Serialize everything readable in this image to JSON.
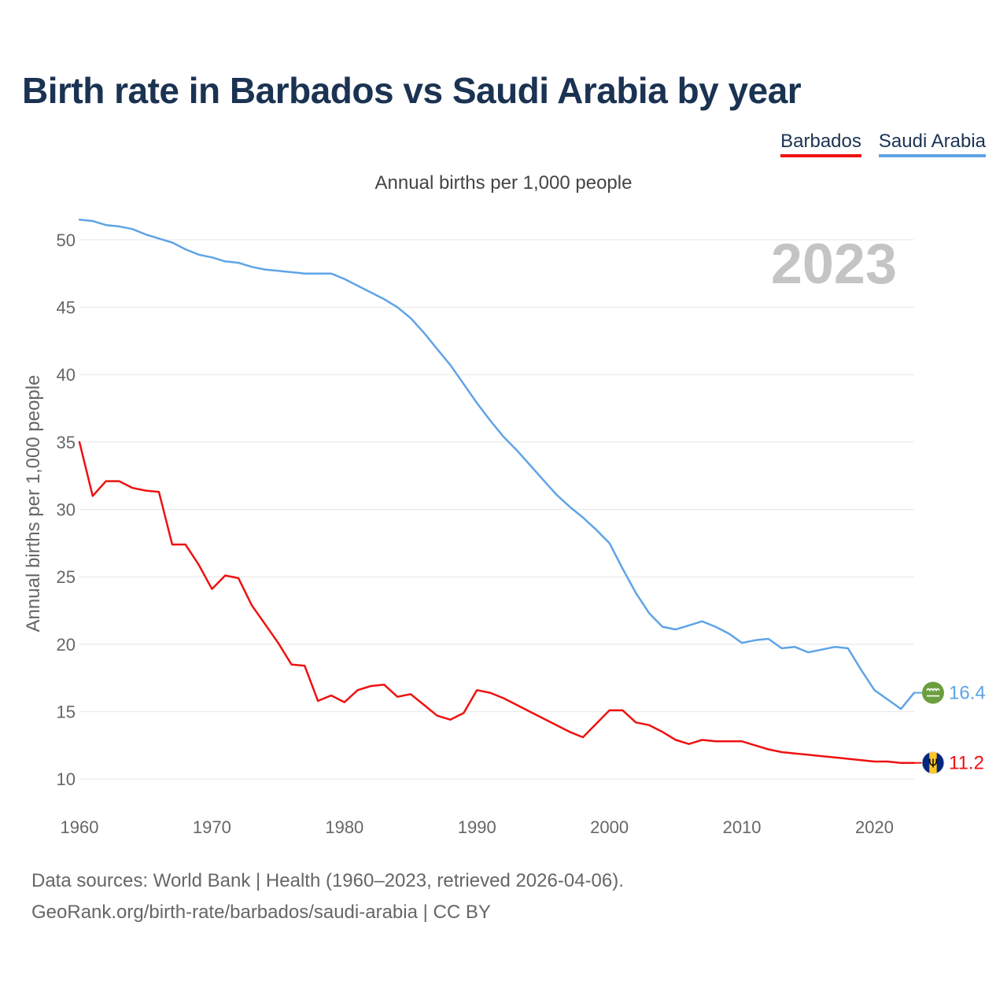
{
  "title": "Birth rate in Barbados vs Saudi Arabia by year",
  "legend": [
    {
      "label": "Barbados",
      "color": "#ee1111"
    },
    {
      "label": "Saudi Arabia",
      "color": "#5fa4e6"
    }
  ],
  "footer": {
    "line1": "Data sources: World Bank | Health (1960–2023, retrieved 2026-04-06).",
    "line2": "GeoRank.org/birth-rate/barbados/saudi-arabia | CC BY"
  },
  "chart_data": {
    "type": "line",
    "title": "Birth rate in Barbados vs Saudi Arabia by year",
    "subtitle": "Annual births per 1,000 people",
    "xlabel": "",
    "ylabel": "Annual births per 1,000 people",
    "watermark_year": "2023",
    "xlim": [
      1960,
      2023
    ],
    "ylim": [
      8,
      53
    ],
    "x_ticks": [
      "1960",
      "1970",
      "1980",
      "1990",
      "2000",
      "2010",
      "2020"
    ],
    "y_ticks": [
      "10",
      "15",
      "20",
      "25",
      "30",
      "35",
      "40",
      "45",
      "50"
    ],
    "grid": true,
    "series": [
      {
        "name": "Barbados",
        "color": "#ee1111",
        "end_label": "11.2",
        "flag": "barbados-flag",
        "x": [
          1960,
          1961,
          1962,
          1963,
          1964,
          1965,
          1966,
          1967,
          1968,
          1969,
          1970,
          1971,
          1972,
          1973,
          1974,
          1975,
          1976,
          1977,
          1978,
          1979,
          1980,
          1981,
          1982,
          1983,
          1984,
          1985,
          1986,
          1987,
          1988,
          1989,
          1990,
          1991,
          1992,
          1993,
          1994,
          1995,
          1996,
          1997,
          1998,
          1999,
          2000,
          2001,
          2002,
          2003,
          2004,
          2005,
          2006,
          2007,
          2008,
          2009,
          2010,
          2011,
          2012,
          2013,
          2014,
          2015,
          2016,
          2017,
          2018,
          2019,
          2020,
          2021,
          2022,
          2023
        ],
        "values": [
          35.0,
          31.0,
          32.1,
          32.1,
          31.6,
          31.4,
          31.3,
          27.4,
          27.4,
          25.9,
          24.1,
          25.1,
          24.9,
          22.9,
          21.5,
          20.1,
          18.5,
          18.4,
          15.8,
          16.2,
          15.7,
          16.6,
          16.9,
          17.0,
          16.1,
          16.3,
          15.5,
          14.7,
          14.4,
          14.9,
          16.6,
          16.4,
          16.0,
          15.5,
          15.0,
          14.5,
          14.0,
          13.5,
          13.1,
          14.1,
          15.1,
          15.1,
          14.2,
          14.0,
          13.5,
          12.9,
          12.6,
          12.9,
          12.8,
          12.8,
          12.8,
          12.5,
          12.2,
          12.0,
          11.9,
          11.8,
          11.7,
          11.6,
          11.5,
          11.4,
          11.3,
          11.3,
          11.2,
          11.2
        ]
      },
      {
        "name": "Saudi Arabia",
        "color": "#5fa4e6",
        "end_label": "16.4",
        "flag": "saudi-arabia-flag",
        "x": [
          1960,
          1961,
          1962,
          1963,
          1964,
          1965,
          1966,
          1967,
          1968,
          1969,
          1970,
          1971,
          1972,
          1973,
          1974,
          1975,
          1976,
          1977,
          1978,
          1979,
          1980,
          1981,
          1982,
          1983,
          1984,
          1985,
          1986,
          1987,
          1988,
          1989,
          1990,
          1991,
          1992,
          1993,
          1994,
          1995,
          1996,
          1997,
          1998,
          1999,
          2000,
          2001,
          2002,
          2003,
          2004,
          2005,
          2006,
          2007,
          2008,
          2009,
          2010,
          2011,
          2012,
          2013,
          2014,
          2015,
          2016,
          2017,
          2018,
          2019,
          2020,
          2021,
          2022,
          2023
        ],
        "values": [
          51.5,
          51.4,
          51.1,
          51.0,
          50.8,
          50.4,
          50.1,
          49.8,
          49.3,
          48.9,
          48.7,
          48.4,
          48.3,
          48.0,
          47.8,
          47.7,
          47.6,
          47.5,
          47.5,
          47.5,
          47.1,
          46.6,
          46.1,
          45.6,
          45.0,
          44.2,
          43.1,
          41.9,
          40.7,
          39.3,
          37.9,
          36.6,
          35.4,
          34.4,
          33.3,
          32.2,
          31.1,
          30.2,
          29.4,
          28.5,
          27.5,
          25.6,
          23.8,
          22.3,
          21.3,
          21.1,
          21.4,
          21.7,
          21.3,
          20.8,
          20.1,
          20.3,
          20.4,
          19.7,
          19.8,
          19.4,
          19.6,
          19.8,
          19.7,
          18.1,
          16.6,
          15.9,
          15.2,
          16.4
        ]
      }
    ]
  }
}
